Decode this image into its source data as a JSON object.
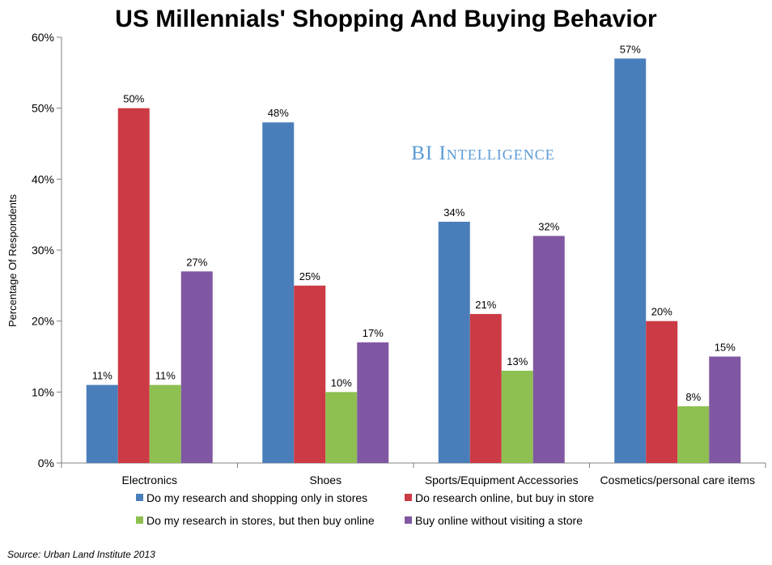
{
  "title": "US Millennials' Shopping And Buying Behavior",
  "watermark": {
    "brand": "BI",
    "word": "Intelligence"
  },
  "source": "Source: Urban Land Institute 2013",
  "chart_data": {
    "type": "bar",
    "title": "US Millennials' Shopping And Buying Behavior",
    "xlabel": "",
    "ylabel": "Percentage Of Respondents",
    "ylim": [
      0,
      60
    ],
    "yticks": [
      "0%",
      "10%",
      "20%",
      "30%",
      "40%",
      "50%",
      "60%"
    ],
    "y_tick_values": [
      0,
      10,
      20,
      30,
      40,
      50,
      60
    ],
    "grid": false,
    "legend_position": "bottom",
    "categories": [
      "Electronics",
      "Shoes",
      "Sports/Equipment Accessories",
      "Cosmetics/personal care items"
    ],
    "series": [
      {
        "name": "Do my research and shopping only in stores",
        "color": "#4A7EBB",
        "values": [
          11,
          48,
          34,
          57
        ],
        "labels": [
          "11%",
          "48%",
          "34%",
          "57%"
        ]
      },
      {
        "name": "Do research online, but buy in store",
        "color": "#CC3A45",
        "values": [
          50,
          25,
          21,
          20
        ],
        "labels": [
          "50%",
          "25%",
          "21%",
          "20%"
        ]
      },
      {
        "name": "Do my research in stores, but then buy online",
        "color": "#8DC050",
        "values": [
          11,
          10,
          13,
          8
        ],
        "labels": [
          "11%",
          "10%",
          "13%",
          "8%"
        ]
      },
      {
        "name": "Buy online without visiting a store",
        "color": "#8057A2",
        "values": [
          27,
          17,
          32,
          15
        ],
        "labels": [
          "27%",
          "17%",
          "32%",
          "15%"
        ]
      }
    ]
  }
}
